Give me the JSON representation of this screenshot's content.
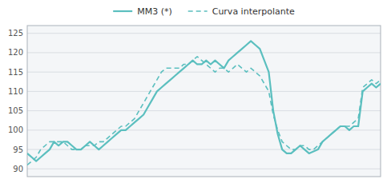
{
  "chart_data": {
    "type": "line",
    "title": "",
    "categories": [
      null,
      null,
      null,
      null,
      null,
      null,
      null,
      null,
      null,
      null,
      null,
      null,
      null,
      null,
      null,
      null,
      null,
      null,
      null,
      null,
      null,
      null,
      null,
      null,
      null,
      null,
      null,
      null,
      null,
      null,
      null,
      null,
      null,
      null,
      null,
      null,
      null,
      null,
      null,
      null,
      null,
      null,
      null,
      null,
      null,
      null,
      null,
      null,
      null,
      null,
      null,
      null,
      null,
      null,
      null,
      null,
      null,
      null,
      null,
      null,
      null,
      null,
      null,
      null,
      null,
      null,
      null,
      null,
      null,
      null,
      null,
      null,
      null,
      null,
      null,
      null,
      null,
      null,
      null,
      null
    ],
    "series": [
      {
        "name": "MM3 (*)",
        "color": "#5bbfbf",
        "line_style": "solid",
        "values": [
          94,
          93,
          92,
          93,
          94,
          95,
          97,
          96,
          97,
          97,
          96,
          95,
          95,
          96,
          97,
          96,
          95,
          96,
          97,
          98,
          99,
          100,
          100,
          101,
          102,
          103,
          104,
          106,
          108,
          110,
          111,
          112,
          113,
          114,
          115,
          116,
          117,
          118,
          117,
          117,
          118,
          117,
          118,
          117,
          116,
          118,
          119,
          120,
          121,
          122,
          123,
          122,
          121,
          118,
          115,
          105,
          99,
          95,
          94,
          94,
          95,
          96,
          95,
          94,
          94.5,
          95,
          97,
          98,
          99,
          100,
          101,
          101,
          100,
          101,
          101,
          110,
          111,
          112,
          111,
          112
        ]
      },
      {
        "name": "Curva interpolante",
        "color": "#5bbfbf",
        "line_style": "dashed",
        "values": [
          91,
          92,
          93,
          95,
          96,
          97,
          97,
          97,
          97,
          96,
          95,
          95,
          95,
          96,
          96,
          96,
          97,
          97,
          98,
          99,
          100,
          101,
          101,
          102,
          103,
          105,
          107,
          109,
          111,
          113,
          115,
          116,
          116,
          116,
          116,
          117,
          117,
          118,
          119,
          118,
          117,
          116,
          115,
          116,
          116,
          115,
          116,
          117,
          116,
          115,
          116,
          115,
          114,
          112,
          110,
          104,
          100,
          97,
          96,
          95,
          95,
          96,
          96,
          95,
          95,
          96,
          97,
          98,
          99,
          100,
          101,
          101,
          101,
          102,
          103,
          111,
          112,
          113,
          112,
          113
        ]
      }
    ],
    "ylim": [
      88,
      127
    ],
    "yticks": [
      90,
      95,
      100,
      105,
      110,
      115,
      120,
      125
    ],
    "grid": true,
    "legend": "top",
    "tick_labels": "y"
  }
}
